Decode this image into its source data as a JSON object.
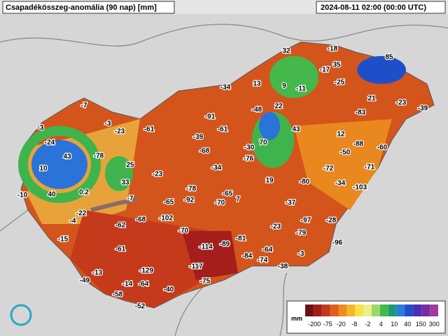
{
  "header": {
    "title": "Csapadékösszeg-anomália (90 nap) [mm]",
    "timestamp": "2024-08-11 02:00 (00:00 UTC)"
  },
  "stations": [
    32,
    -18,
    85,
    -17,
    35,
    13,
    9,
    -11,
    -25,
    -34,
    21,
    -23,
    -39,
    -7,
    -48,
    22,
    -91,
    -83,
    -3,
    -3,
    -23,
    -61,
    -61,
    43,
    12,
    -39,
    -24,
    -88,
    -60,
    70,
    -30,
    43,
    -78,
    -68,
    -50,
    -76,
    25,
    10,
    -34,
    -72,
    -71,
    -23,
    19,
    -80,
    -34,
    -103,
    33,
    -78,
    -65,
    40,
    0.2,
    -10,
    -7,
    7,
    -92,
    -70,
    -65,
    -37,
    -22,
    -102,
    -68,
    -4,
    -28,
    -62,
    -23,
    -97,
    -70,
    -79,
    -81,
    -15,
    -96,
    -114,
    -89,
    -61,
    -64,
    -84,
    -3,
    -74,
    -38,
    -117,
    -129,
    -13,
    -49,
    -14,
    -64,
    -75,
    -40,
    -58,
    -52
  ],
  "legend": {
    "unit": "mm",
    "ticks": [
      -200,
      -75,
      -20,
      -8,
      -2,
      4,
      10,
      40,
      150,
      300
    ],
    "colors": [
      "#6e0f14",
      "#9e1d1a",
      "#c4381c",
      "#de5f1c",
      "#ef8a1e",
      "#f7b52a",
      "#fbe04a",
      "#e8f08a",
      "#9fd66a",
      "#44b84a",
      "#1f9a78",
      "#2c7be0",
      "#1f4fc8",
      "#4a2fb0",
      "#7a2aa8",
      "#a13a9c"
    ]
  }
}
